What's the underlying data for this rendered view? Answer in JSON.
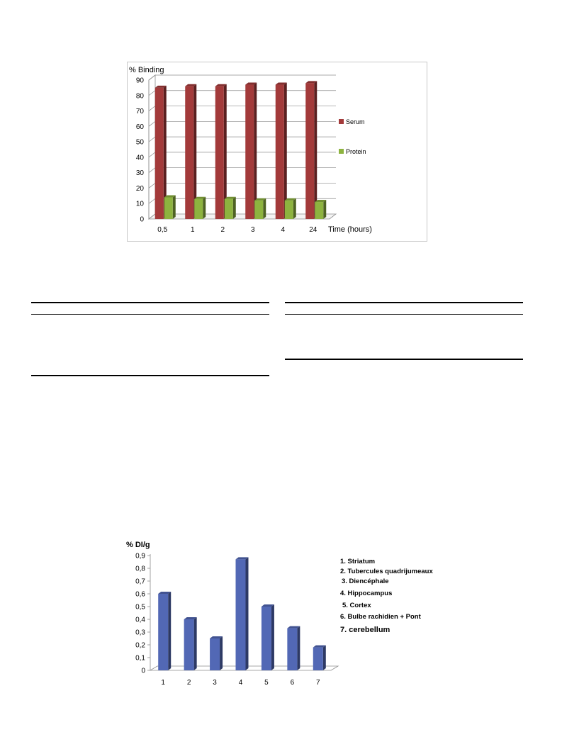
{
  "chart_data": [
    {
      "type": "bar",
      "ylabel": "% Binding",
      "xlabel": "Time (hours)",
      "categories": [
        "0,5",
        "1",
        "2",
        "3",
        "4",
        "24"
      ],
      "ylim": [
        0,
        90
      ],
      "yticks": [
        "0",
        "10",
        "20",
        "30",
        "40",
        "50",
        "60",
        "70",
        "80",
        "90"
      ],
      "grid": true,
      "legend_position": "right",
      "series": [
        {
          "name": "Serum",
          "color": "#a33a3a",
          "values": [
            85,
            86,
            86,
            87,
            87,
            88
          ]
        },
        {
          "name": "Protein",
          "color": "#8db33f",
          "values": [
            14,
            13,
            13,
            12,
            12,
            11
          ]
        }
      ]
    },
    {
      "type": "bar",
      "ylabel": "% DI/g",
      "categories": [
        "1",
        "2",
        "3",
        "4",
        "5",
        "6",
        "7"
      ],
      "ylim": [
        0,
        0.9
      ],
      "yticks": [
        "0",
        "0,1",
        "0,2",
        "0,3",
        "0,4",
        "0,5",
        "0,6",
        "0,7",
        "0,8",
        "0,9"
      ],
      "grid": false,
      "legend_position": "right",
      "series": [
        {
          "color": "#5268b5",
          "values": [
            0.6,
            0.4,
            0.25,
            0.87,
            0.5,
            0.33,
            0.18
          ]
        }
      ],
      "legend_items": [
        "1. Striatum",
        "2. Tubercules quadrijumeaux",
        "3. Diencéphale",
        "4. Hippocampus",
        "5. Cortex",
        "6. Bulbe rachidien + Pont",
        "7. cerebellum"
      ]
    }
  ]
}
